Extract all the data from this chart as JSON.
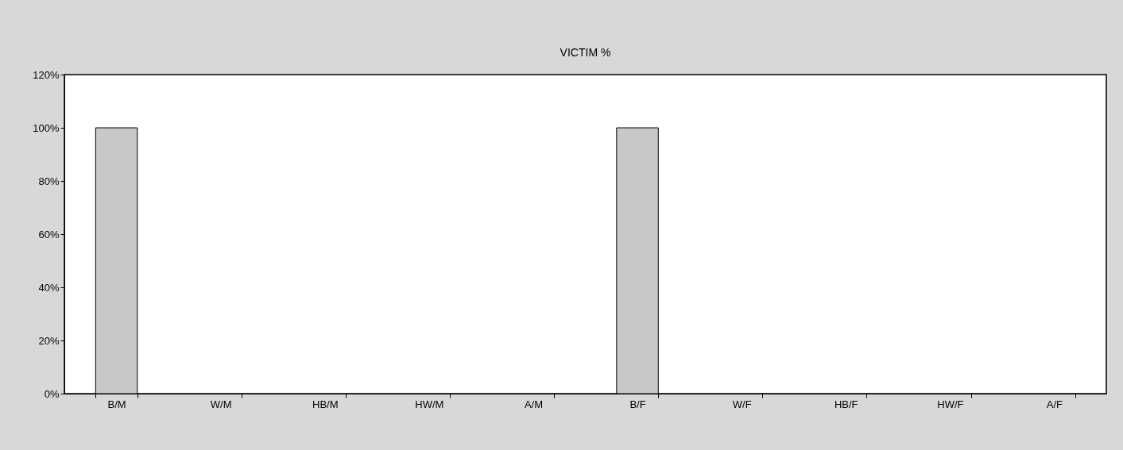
{
  "chart_data": {
    "type": "bar",
    "title": "VICTIM %",
    "categories": [
      "B/M",
      "W/M",
      "HB/M",
      "HW/M",
      "A/M",
      "B/F",
      "W/F",
      "HB/F",
      "HW/F",
      "A/F"
    ],
    "values": [
      100,
      0,
      0,
      0,
      0,
      100,
      0,
      0,
      0,
      0
    ],
    "color": "#c8c8c8",
    "ylim": [
      0,
      120
    ],
    "yticks": [
      {
        "value": 0,
        "label": "0%"
      },
      {
        "value": 20,
        "label": "20%"
      },
      {
        "value": 40,
        "label": "40%"
      },
      {
        "value": 60,
        "label": "60%"
      },
      {
        "value": 80,
        "label": "80%"
      },
      {
        "value": 100,
        "label": "100%"
      },
      {
        "value": 120,
        "label": "120%"
      }
    ],
    "grid": false
  }
}
